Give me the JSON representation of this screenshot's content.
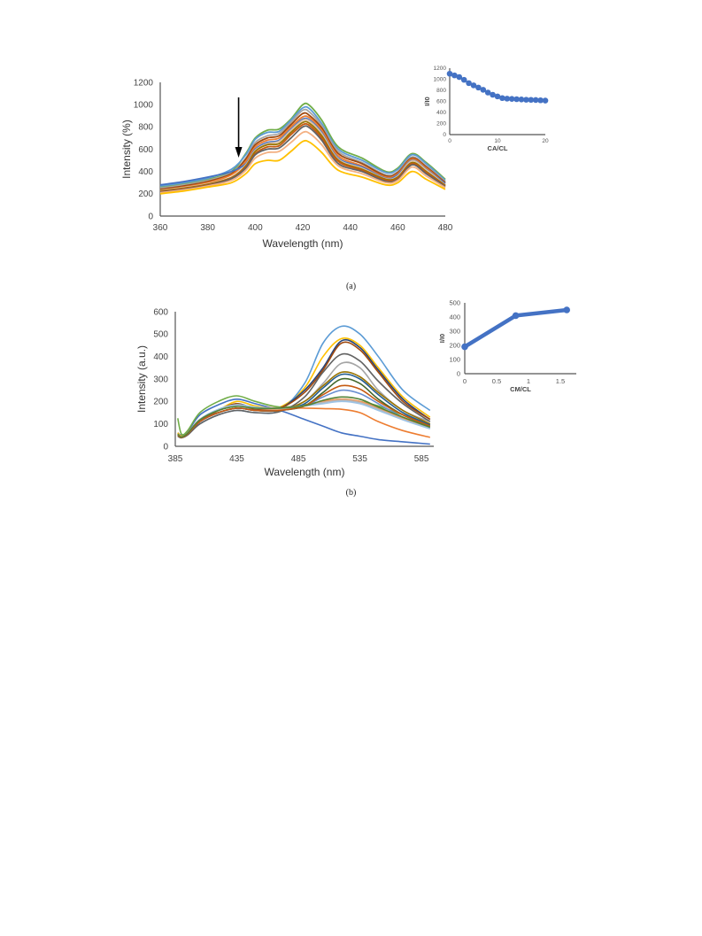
{
  "panels": [
    {
      "label": "(a)"
    },
    {
      "label": "(b)"
    }
  ],
  "chart_data": [
    {
      "type": "line",
      "panel": "(a) main",
      "xlabel": "Wavelength (nm)",
      "ylabel": "Intensity (%)",
      "xlim": [
        360,
        480
      ],
      "ylim": [
        0,
        1200
      ],
      "xticks": [
        "360",
        "380",
        "400",
        "420",
        "440",
        "460",
        "480"
      ],
      "yticks": [
        "0",
        "200",
        "400",
        "600",
        "800",
        "1000",
        "1200"
      ],
      "annotation": "downward arrow at ~393 nm indicating decreasing intensity",
      "colors": [
        "#70ad47",
        "#5b9bd5",
        "#a5a5a5",
        "#9e480e",
        "#ed7d31",
        "#4472c4",
        "#d8c0a8",
        "#997300",
        "#c55a11",
        "#636363",
        "#f4b183",
        "#ffc000"
      ],
      "x": [
        360,
        370,
        380,
        390,
        396,
        400,
        405,
        410,
        415,
        420,
        423,
        428,
        435,
        445,
        455,
        460,
        466,
        472,
        480
      ],
      "series": [
        {
          "values": [
            260,
            290,
            330,
            400,
            560,
            700,
            770,
            780,
            870,
            1000,
            990,
            860,
            620,
            520,
            400,
            430,
            560,
            480,
            330
          ]
        },
        {
          "values": [
            270,
            300,
            340,
            420,
            550,
            690,
            750,
            760,
            860,
            970,
            960,
            830,
            600,
            500,
            390,
            420,
            550,
            470,
            320
          ]
        },
        {
          "values": [
            250,
            280,
            320,
            390,
            520,
            660,
            720,
            740,
            840,
            950,
            930,
            810,
            580,
            480,
            370,
            400,
            530,
            450,
            310
          ]
        },
        {
          "values": [
            240,
            270,
            310,
            380,
            510,
            640,
            700,
            720,
            820,
            920,
            900,
            790,
            560,
            470,
            360,
            390,
            520,
            440,
            300
          ]
        },
        {
          "values": [
            230,
            260,
            300,
            370,
            490,
            620,
            680,
            700,
            800,
            890,
            880,
            770,
            540,
            450,
            350,
            380,
            510,
            430,
            290
          ]
        },
        {
          "values": [
            280,
            310,
            350,
            400,
            470,
            600,
            660,
            680,
            780,
            870,
            860,
            750,
            520,
            440,
            340,
            370,
            500,
            420,
            290
          ]
        },
        {
          "values": [
            230,
            255,
            290,
            350,
            460,
            590,
            650,
            670,
            770,
            860,
            850,
            740,
            510,
            430,
            335,
            360,
            495,
            415,
            280
          ]
        },
        {
          "values": [
            225,
            250,
            285,
            345,
            450,
            580,
            640,
            650,
            750,
            840,
            830,
            720,
            500,
            420,
            330,
            350,
            480,
            400,
            275
          ]
        },
        {
          "values": [
            220,
            245,
            280,
            340,
            440,
            560,
            620,
            630,
            730,
            820,
            810,
            700,
            490,
            410,
            320,
            340,
            470,
            390,
            270
          ]
        },
        {
          "values": [
            215,
            240,
            275,
            335,
            430,
            550,
            600,
            610,
            700,
            800,
            790,
            680,
            470,
            400,
            310,
            330,
            460,
            380,
            265
          ]
        },
        {
          "values": [
            210,
            235,
            270,
            320,
            410,
            520,
            570,
            580,
            660,
            750,
            740,
            640,
            450,
            380,
            300,
            320,
            440,
            360,
            255
          ]
        },
        {
          "values": [
            200,
            225,
            260,
            300,
            380,
            470,
            500,
            500,
            580,
            670,
            660,
            570,
            410,
            350,
            280,
            300,
            400,
            330,
            240
          ]
        }
      ]
    },
    {
      "type": "scatter",
      "panel": "(a) inset",
      "xlabel": "CA/CL",
      "ylabel": "I/I0",
      "xlim": [
        0,
        20
      ],
      "ylim": [
        0,
        1200
      ],
      "xticks": [
        "0",
        "10",
        "20"
      ],
      "yticks": [
        "0",
        "200",
        "400",
        "600",
        "800",
        "1000",
        "1200"
      ],
      "color": "#4472c4",
      "x": [
        0,
        1,
        2,
        3,
        4,
        5,
        6,
        7,
        8,
        9,
        10,
        11,
        12,
        13,
        14,
        15,
        16,
        17,
        18,
        19,
        20
      ],
      "y": [
        1100,
        1070,
        1040,
        990,
        930,
        890,
        850,
        810,
        760,
        720,
        690,
        660,
        650,
        645,
        640,
        635,
        630,
        628,
        625,
        620,
        615
      ]
    },
    {
      "type": "line",
      "panel": "(b) main",
      "xlabel": "Wavelength (nm)",
      "ylabel": "Intensity (a.u.)",
      "xlim": [
        385,
        595
      ],
      "ylim": [
        0,
        600
      ],
      "xticks": [
        "385",
        "435",
        "485",
        "535",
        "585"
      ],
      "yticks": [
        "0",
        "100",
        "200",
        "300",
        "400",
        "500",
        "600"
      ],
      "colors": [
        "#4472c4",
        "#ed7d31",
        "#a5a5a5",
        "#ffc000",
        "#5b9bd5",
        "#70ad47",
        "#264478",
        "#9e480e",
        "#636363",
        "#997300",
        "#255e91",
        "#43682b",
        "#698ed0",
        "#f1975a",
        "#b7b7b7",
        "#9dc3e6",
        "#c55a11",
        "#548235"
      ],
      "x": [
        387,
        390,
        395,
        405,
        420,
        435,
        450,
        470,
        490,
        505,
        520,
        535,
        550,
        570,
        592
      ],
      "series": [
        {
          "values": [
            60,
            50,
            65,
            140,
            185,
            210,
            190,
            160,
            120,
            90,
            60,
            45,
            30,
            20,
            10
          ]
        },
        {
          "values": [
            60,
            45,
            60,
            120,
            160,
            180,
            175,
            170,
            170,
            168,
            165,
            150,
            110,
            70,
            40
          ]
        },
        {
          "values": [
            50,
            40,
            55,
            110,
            150,
            170,
            165,
            165,
            200,
            280,
            370,
            350,
            250,
            160,
            110
          ]
        },
        {
          "values": [
            60,
            45,
            55,
            110,
            160,
            200,
            180,
            175,
            260,
            400,
            480,
            450,
            350,
            220,
            130
          ]
        },
        {
          "values": [
            50,
            40,
            55,
            100,
            140,
            160,
            150,
            160,
            280,
            460,
            535,
            500,
            400,
            250,
            160
          ]
        },
        {
          "values": [
            125,
            55,
            70,
            150,
            200,
            225,
            200,
            175,
            185,
            200,
            210,
            200,
            180,
            140,
            100
          ]
        },
        {
          "values": [
            50,
            40,
            55,
            110,
            160,
            190,
            170,
            170,
            250,
            350,
            470,
            440,
            340,
            210,
            120
          ]
        },
        {
          "values": [
            50,
            40,
            55,
            110,
            160,
            190,
            165,
            170,
            240,
            340,
            460,
            430,
            330,
            200,
            120
          ]
        },
        {
          "values": [
            45,
            38,
            50,
            100,
            140,
            160,
            150,
            155,
            220,
            330,
            410,
            380,
            290,
            190,
            110
          ]
        },
        {
          "values": [
            50,
            40,
            55,
            110,
            150,
            170,
            160,
            160,
            200,
            270,
            330,
            310,
            240,
            160,
            100
          ]
        },
        {
          "values": [
            50,
            40,
            55,
            110,
            150,
            170,
            160,
            160,
            190,
            260,
            320,
            300,
            230,
            150,
            95
          ]
        },
        {
          "values": [
            50,
            40,
            55,
            110,
            150,
            170,
            160,
            160,
            180,
            240,
            300,
            280,
            210,
            140,
            90
          ]
        },
        {
          "values": [
            50,
            40,
            55,
            110,
            150,
            170,
            160,
            160,
            180,
            220,
            250,
            235,
            190,
            130,
            85
          ]
        },
        {
          "values": [
            55,
            42,
            58,
            120,
            160,
            180,
            170,
            165,
            180,
            200,
            210,
            200,
            170,
            125,
            80
          ]
        },
        {
          "values": [
            55,
            42,
            58,
            120,
            160,
            180,
            170,
            168,
            180,
            195,
            205,
            195,
            165,
            120,
            80
          ]
        },
        {
          "values": [
            55,
            42,
            58,
            120,
            165,
            185,
            175,
            170,
            180,
            190,
            200,
            190,
            160,
            118,
            78
          ]
        },
        {
          "values": [
            50,
            40,
            55,
            110,
            150,
            170,
            160,
            160,
            180,
            230,
            270,
            255,
            200,
            140,
            90
          ]
        },
        {
          "values": [
            55,
            42,
            58,
            118,
            160,
            178,
            170,
            170,
            180,
            205,
            220,
            210,
            175,
            130,
            85
          ]
        }
      ]
    },
    {
      "type": "line",
      "panel": "(b) inset",
      "xlabel": "CM/CL",
      "ylabel": "I/I0",
      "xlim": [
        0,
        1.75
      ],
      "ylim": [
        0,
        500
      ],
      "xticks": [
        "0",
        "0.5",
        "1",
        "1.5"
      ],
      "yticks": [
        "0",
        "100",
        "200",
        "300",
        "400",
        "500"
      ],
      "color": "#4472c4",
      "x": [
        0,
        0.8,
        1.6
      ],
      "y": [
        190,
        410,
        450
      ]
    }
  ]
}
